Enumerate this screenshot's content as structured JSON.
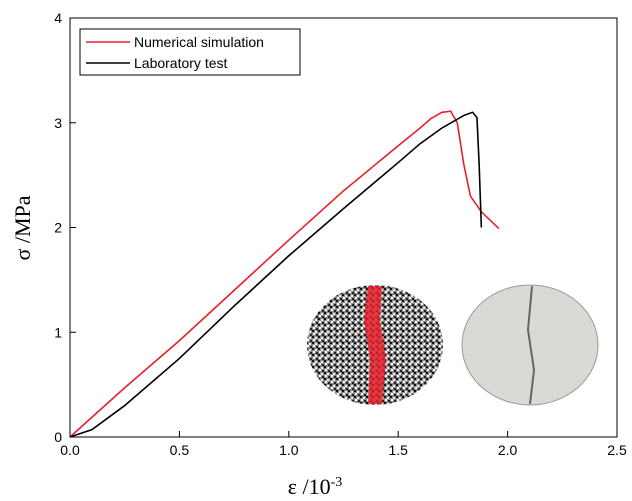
{
  "chart_data": {
    "type": "line",
    "x_label": "ε /10",
    "x_label_sup": "-3",
    "y_label": "σ /MPa",
    "series": [
      {
        "name": "Numerical simulation",
        "color": "#e8202a",
        "x": [
          0,
          0.25,
          0.5,
          0.75,
          1.0,
          1.25,
          1.5,
          1.6,
          1.65,
          1.7,
          1.74,
          1.77,
          1.8,
          1.83,
          1.88,
          1.96
        ],
        "values": [
          0,
          0.47,
          0.92,
          1.4,
          1.88,
          2.35,
          2.78,
          2.95,
          3.04,
          3.1,
          3.11,
          3.0,
          2.6,
          2.3,
          2.15,
          1.99
        ]
      },
      {
        "name": "Laboratory test",
        "color": "#000000",
        "x": [
          0,
          0.1,
          0.25,
          0.5,
          0.75,
          1.0,
          1.25,
          1.5,
          1.6,
          1.7,
          1.8,
          1.84,
          1.86,
          1.87,
          1.88
        ],
        "values": [
          0,
          0.07,
          0.3,
          0.75,
          1.25,
          1.73,
          2.18,
          2.62,
          2.8,
          2.95,
          3.07,
          3.1,
          3.05,
          2.6,
          2.0
        ]
      }
    ],
    "xlim": [
      0,
      2.5
    ],
    "xticks": [
      {
        "value": 0,
        "label": "0.0"
      },
      {
        "value": 0.5,
        "label": "0.5"
      },
      {
        "value": 1,
        "label": "1.0"
      },
      {
        "value": 1.5,
        "label": "1.5"
      },
      {
        "value": 2,
        "label": "2.0"
      },
      {
        "value": 2.5,
        "label": "2.5"
      }
    ],
    "ylim": [
      0,
      4
    ],
    "yticks": [
      0,
      1,
      2,
      3,
      4
    ],
    "legend": "upper left"
  }
}
